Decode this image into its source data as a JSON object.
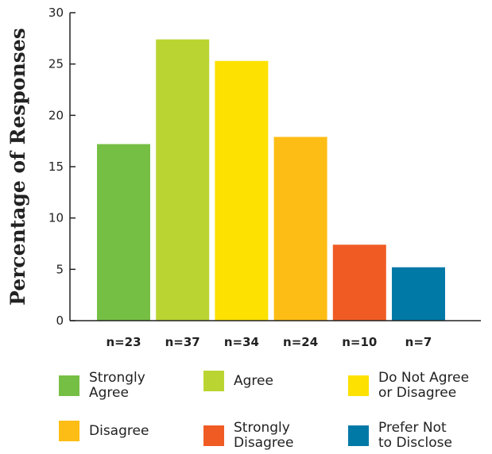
{
  "chart_data": {
    "type": "bar",
    "ylabel": "Percentage of Responses",
    "ylim": [
      0,
      30
    ],
    "yticks": [
      "0",
      "5",
      "10",
      "15",
      "20",
      "25",
      "30"
    ],
    "categories": [
      "Strongly\nAgree",
      "Agree",
      "Do Not Agree\nor Disagree",
      "Disagree",
      "Strongly\nDisagree",
      "Prefer Not\nto Disclose"
    ],
    "values": [
      17.2,
      27.4,
      25.3,
      17.9,
      7.4,
      5.2
    ],
    "counts": [
      "n=23",
      "n=37",
      "n=34",
      "n=24",
      "n=10",
      "n=7"
    ],
    "colors": [
      "#76bf45",
      "#bad532",
      "#fde100",
      "#fdbd14",
      "#f05b23",
      "#0079a7"
    ],
    "grid": false,
    "legend_position": "bottom"
  }
}
